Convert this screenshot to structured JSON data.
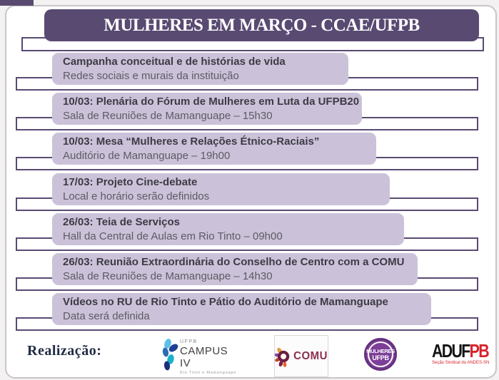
{
  "title": "MULHERES EM MARÇO - CCAE/UFPB",
  "events": [
    {
      "title": "Campanha conceitual e de histórias de vida",
      "detail": "Redes sociais  e murais da instituição"
    },
    {
      "title": "10/03: Plenária do Fórum de Mulheres em Luta da UFPB20",
      "detail": "Sala de Reuniões de Mamanguape – 15h30"
    },
    {
      "title": "10/03: Mesa “Mulheres e Relações Étnico-Raciais”",
      "detail": "Auditório de Mamanguape – 19h00"
    },
    {
      "title": "17/03: Projeto Cine-debate",
      "detail": "Local e horário serão definidos"
    },
    {
      "title": "26/03: Teia de Serviços",
      "detail": "Hall da Central de Aulas em Rio Tinto – 09h00"
    },
    {
      "title": "26/03: Reunião Extraordinária do Conselho de Centro com a COMU",
      "detail": "Sala de Reuniões de Mamanguape – 14h30"
    },
    {
      "title": "Vídeos no RU de Rio Tinto e Pátio do Auditório de Mamanguape",
      "detail": "Data será definida"
    }
  ],
  "footer": {
    "label": "Realização:",
    "ufpb_logo": {
      "acronym": "UFPB",
      "name": "CAMPUS IV",
      "sub": "Rio Tinto e Mamanguape"
    },
    "comu_logo": {
      "name": "COMU"
    },
    "mulheres_logo": {
      "line1": "MULHERES",
      "line2": "UFPB"
    },
    "adufpb_logo": {
      "part1": "ADUF",
      "part2": "PB",
      "sub": "Seção Sindical do ANDES-SN"
    }
  },
  "colors": {
    "header_purple": "#594a72",
    "row_lavender": "#cbc2d9",
    "outline_purple": "#594a72",
    "comu_maroon": "#8b2d4f",
    "mulheres_purple": "#7d3f98",
    "adufpb_red": "#d8232a",
    "ufpb_blue": "#2a6db5"
  }
}
